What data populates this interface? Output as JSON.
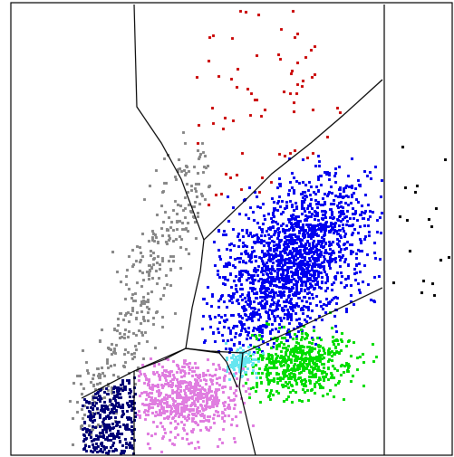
{
  "plot": {
    "background": "#ffffff",
    "frame_color": "#000000",
    "boundary_color": "#000000"
  },
  "clusters": [
    {
      "name": "red-cluster",
      "color": "#cc1111",
      "count": 70,
      "shape": "scatter-sparse"
    },
    {
      "name": "grey-cluster",
      "color": "#8a8a8a",
      "count": 380,
      "shape": "diagonal-band"
    },
    {
      "name": "blue-cluster",
      "color": "#0000ee",
      "count": 1700,
      "shape": "ellipse-dense"
    },
    {
      "name": "green-cluster",
      "color": "#00dd00",
      "count": 520,
      "shape": "ellipse"
    },
    {
      "name": "cyan-cluster",
      "color": "#66e6f0",
      "count": 110,
      "shape": "small-blob"
    },
    {
      "name": "pink-cluster",
      "color": "#e07ee0",
      "count": 650,
      "shape": "ellipse"
    },
    {
      "name": "navy-cluster",
      "color": "#000077",
      "count": 320,
      "shape": "corner-block"
    },
    {
      "name": "black-cluster",
      "color": "#000000",
      "count": 18,
      "shape": "scatter-sparse"
    }
  ]
}
